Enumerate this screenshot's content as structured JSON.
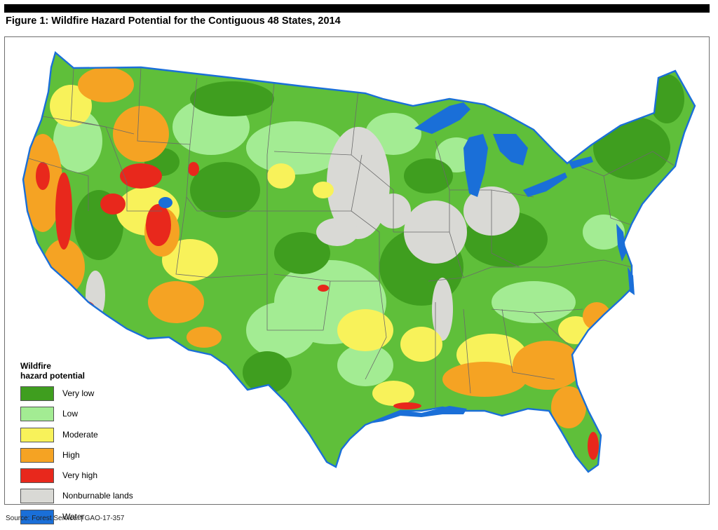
{
  "figure": {
    "title": "Figure 1: Wildfire Hazard Potential for the Contiguous 48 States, 2014",
    "source": "Source: Forest Service.  |  GAO-17-357"
  },
  "legend": {
    "title_line1": "Wildfire",
    "title_line2": "hazard potential",
    "items": [
      {
        "label": "Very low",
        "color": "#3f9e1f"
      },
      {
        "label": "Low",
        "color": "#a3ec93"
      },
      {
        "label": "Moderate",
        "color": "#f8f25a"
      },
      {
        "label": "High",
        "color": "#f5a323"
      },
      {
        "label": "Very high",
        "color": "#e8281c"
      },
      {
        "label": "Nonburnable lands",
        "color": "#d9d9d5"
      },
      {
        "label": "Water",
        "color": "#1a6fd8"
      }
    ]
  },
  "map": {
    "colors": {
      "very_low": "#3f9e1f",
      "low": "#a3ec93",
      "moderate": "#f8f25a",
      "high": "#f5a323",
      "very_high": "#e8281c",
      "nonburnable": "#d9d9d5",
      "water": "#1a6fd8",
      "state_border": "#6a6a6a"
    }
  }
}
